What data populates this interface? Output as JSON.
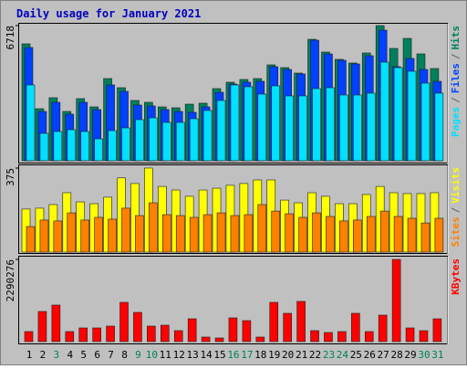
{
  "title": "Daily usage for January 2021",
  "legend_separator": "/",
  "chart_data": [
    {
      "type": "bar",
      "ylim": [
        0,
        6718
      ],
      "yticks": [
        6718
      ],
      "series": [
        {
          "name": "Hits",
          "color": "#00805c",
          "values": [
            5810,
            2587,
            3132,
            2451,
            3087,
            2678,
            4085,
            3631,
            2996,
            2905,
            2678,
            2633,
            2814,
            2860,
            3586,
            3904,
            4040,
            4085,
            4766,
            4630,
            4358,
            6037,
            5402,
            5039,
            4857,
            5357,
            6718,
            5583,
            6082,
            5311,
            4585
          ]
        },
        {
          "name": "Files",
          "color": "#0040ff",
          "values": [
            5629,
            2451,
            2905,
            2315,
            2905,
            2542,
            3768,
            3450,
            2769,
            2724,
            2542,
            2451,
            2406,
            2678,
            3404,
            3813,
            3904,
            3949,
            4675,
            4539,
            4312,
            5992,
            5311,
            4993,
            4811,
            5220,
            6491,
            4675,
            5084,
            4539,
            3949
          ]
        },
        {
          "name": "Pages",
          "color": "#00e0ff",
          "values": [
            3768,
            1362,
            1453,
            1543,
            1453,
            1089,
            1498,
            1634,
            2043,
            2133,
            1906,
            1906,
            2088,
            2497,
            2996,
            3768,
            3677,
            3313,
            3722,
            3223,
            3223,
            3586,
            3631,
            3268,
            3268,
            3359,
            4902,
            4630,
            4449,
            3858,
            3359
          ]
        }
      ]
    },
    {
      "type": "bar",
      "ylim": [
        0,
        375
      ],
      "yticks": [
        375
      ],
      "series": [
        {
          "name": "Visits",
          "color": "#ffff00",
          "values": [
            192,
            196,
            212,
            265,
            224,
            216,
            245,
            331,
            306,
            375,
            293,
            277,
            249,
            277,
            285,
            298,
            306,
            322,
            322,
            232,
            220,
            265,
            249,
            216,
            216,
            257,
            293,
            265,
            261,
            261,
            265
          ]
        },
        {
          "name": "Sites",
          "color": "#ff8000",
          "values": [
            114,
            143,
            139,
            175,
            143,
            155,
            147,
            196,
            163,
            220,
            167,
            163,
            155,
            167,
            175,
            163,
            167,
            212,
            183,
            171,
            155,
            175,
            159,
            139,
            143,
            159,
            183,
            159,
            151,
            130,
            151
          ]
        }
      ]
    },
    {
      "type": "bar",
      "ylim": [
        0,
        2290276
      ],
      "yticks": [
        2290276
      ],
      "categories": [
        "1",
        "2",
        "3",
        "4",
        "5",
        "6",
        "7",
        "8",
        "9",
        "10",
        "11",
        "12",
        "13",
        "14",
        "15",
        "16",
        "17",
        "18",
        "19",
        "20",
        "21",
        "22",
        "23",
        "24",
        "25",
        "26",
        "27",
        "28",
        "29",
        "30",
        "31"
      ],
      "category_colors": [
        "#000000",
        "#000000",
        "#00805c",
        "#000000",
        "#000000",
        "#000000",
        "#000000",
        "#000000",
        "#00805c",
        "#00805c",
        "#000000",
        "#000000",
        "#000000",
        "#000000",
        "#000000",
        "#00805c",
        "#00805c",
        "#000000",
        "#000000",
        "#000000",
        "#000000",
        "#000000",
        "#00805c",
        "#00805c",
        "#000000",
        "#000000",
        "#000000",
        "#000000",
        "#000000",
        "#00805c",
        "#00805c"
      ],
      "series": [
        {
          "name": "KBytes",
          "color": "#ff0000",
          "values": [
            279923,
            839768,
            1017900,
            279923,
            381713,
            381713,
            432608,
            1094242,
            814320,
            432608,
            458055,
            305370,
            636188,
            127237,
            101790,
            661635,
            585293,
            127237,
            1094242,
            788873,
            1119690,
            305370,
            254475,
            279923,
            788873,
            279923,
            737977,
            2290276,
            381713,
            305370,
            636188
          ]
        }
      ]
    }
  ]
}
